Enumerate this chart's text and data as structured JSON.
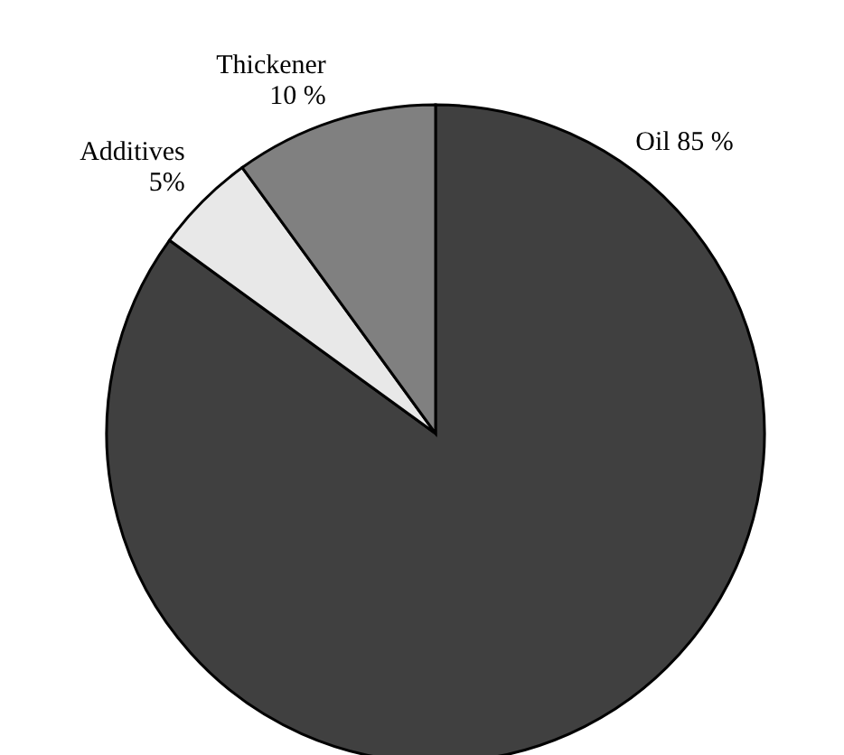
{
  "chart_data": {
    "type": "pie",
    "categories": [
      "Oil",
      "Additives",
      "Thickener"
    ],
    "values": [
      85,
      5,
      10
    ],
    "colors": [
      "#404040",
      "#e8e8e8",
      "#808080"
    ],
    "value_labels": [
      "85 %",
      "5%",
      "10 %"
    ],
    "legend": false
  }
}
